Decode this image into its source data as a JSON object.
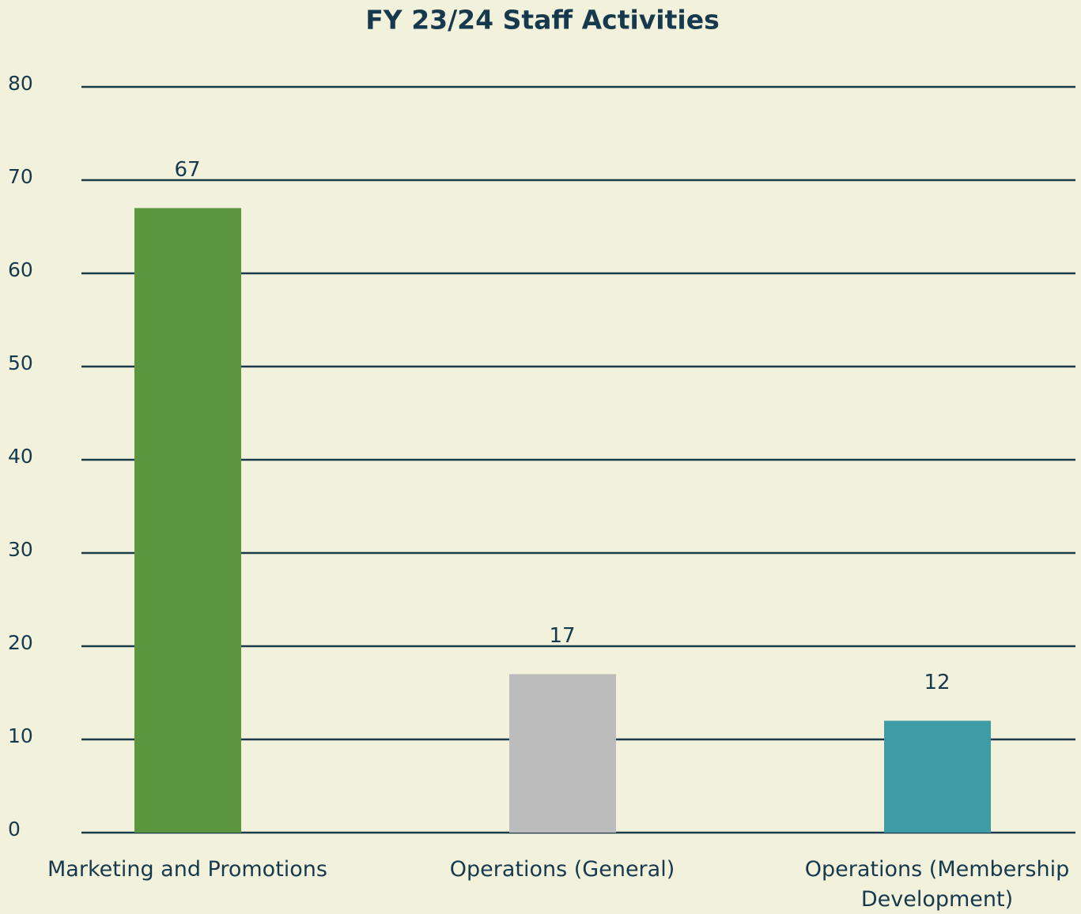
{
  "chart_data": {
    "type": "bar",
    "title": "FY 23/24 Staff Activities",
    "categories": [
      "Marketing and Promotions",
      "Operations (General)",
      "Operations (Membership Development)"
    ],
    "values": [
      67,
      17,
      12
    ],
    "colors": [
      "#5b963f",
      "#bcbcbc",
      "#3f9ca6"
    ],
    "ylim": [
      0,
      80
    ],
    "yticks": [
      0,
      10,
      20,
      30,
      40,
      50,
      60,
      70,
      80
    ],
    "grid": true
  }
}
